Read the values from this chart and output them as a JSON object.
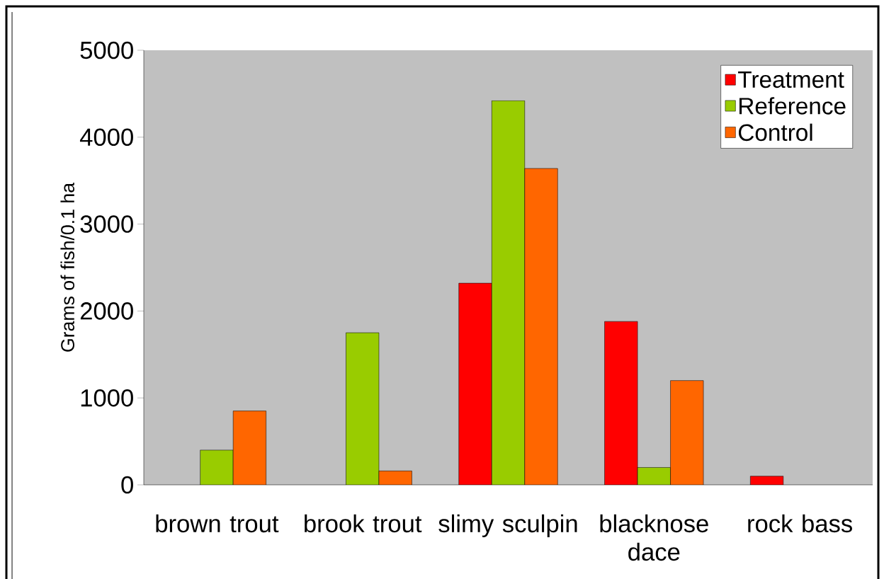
{
  "chart_data": {
    "type": "bar",
    "ylabel": "Grams of fish/0.1 ha",
    "categories": [
      "brown trout",
      "brook trout",
      "slimy sculpin",
      "blacknose dace",
      "rock bass"
    ],
    "series": [
      {
        "name": "Treatment",
        "color": "#ff0000",
        "values": [
          null,
          null,
          2320,
          1880,
          100
        ]
      },
      {
        "name": "Reference",
        "color": "#99cc00",
        "values": [
          400,
          1750,
          4420,
          200,
          null
        ]
      },
      {
        "name": "Control",
        "color": "#ff6600",
        "values": [
          850,
          160,
          3640,
          1200,
          null
        ]
      }
    ],
    "ylim": [
      0,
      5000
    ],
    "yticks": [
      0,
      1000,
      2000,
      3000,
      4000,
      5000
    ],
    "legend": "top right"
  }
}
